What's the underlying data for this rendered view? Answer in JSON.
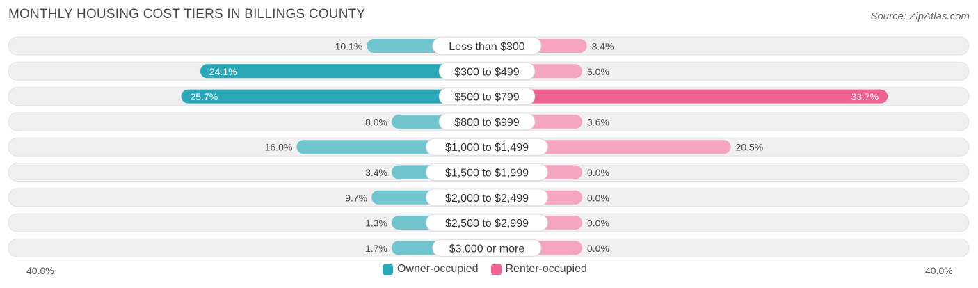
{
  "header": {
    "title": "MONTHLY HOUSING COST TIERS IN BILLINGS COUNTY",
    "source": "Source: ZipAtlas.com"
  },
  "colors": {
    "owner_light": "#71c5cf",
    "owner_dark": "#2aa8b8",
    "renter_light": "#f5a5c0",
    "renter_dark": "#f06292",
    "row_bg": "#f0f0f0"
  },
  "chart_data": {
    "type": "bar",
    "orientation": "horizontal-diverging",
    "title": "MONTHLY HOUSING COST TIERS IN BILLINGS COUNTY",
    "categories": [
      "Less than $300",
      "$300 to $499",
      "$500 to $799",
      "$800 to $999",
      "$1,000 to $1,499",
      "$1,500 to $1,999",
      "$2,000 to $2,499",
      "$2,500 to $2,999",
      "$3,000 or more"
    ],
    "series": [
      {
        "name": "Owner-occupied",
        "side": "left",
        "values": [
          10.1,
          24.1,
          25.7,
          8.0,
          16.0,
          3.4,
          9.7,
          1.3,
          1.7
        ],
        "labels": [
          "10.1%",
          "24.1%",
          "25.7%",
          "8.0%",
          "16.0%",
          "3.4%",
          "9.7%",
          "1.3%",
          "1.7%"
        ]
      },
      {
        "name": "Renter-occupied",
        "side": "right",
        "values": [
          8.4,
          6.0,
          33.7,
          3.6,
          20.5,
          0.0,
          0.0,
          0.0,
          0.0
        ],
        "labels": [
          "8.4%",
          "6.0%",
          "33.7%",
          "3.6%",
          "20.5%",
          "0.0%",
          "0.0%",
          "0.0%",
          "0.0%"
        ]
      }
    ],
    "xlim": [
      -40,
      40
    ],
    "axis_left_label": "40.0%",
    "axis_right_label": "40.0%",
    "legend": [
      "Owner-occupied",
      "Renter-occupied"
    ],
    "legend_position": "bottom-center"
  }
}
